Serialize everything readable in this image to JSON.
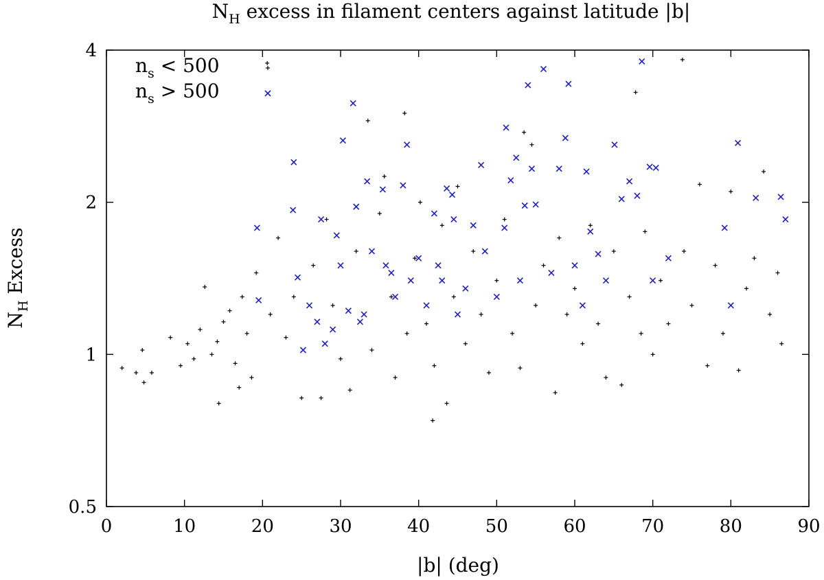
{
  "chart_data": {
    "type": "scatter",
    "title": {
      "main": "N",
      "sub": "H",
      "rest": " excess in filament centers against latitude |b|"
    },
    "xlabel": "|b| (deg)",
    "ylabel": {
      "main": "N",
      "sub": "H",
      "rest": " Excess"
    },
    "xlim": [
      0,
      90
    ],
    "ylim": [
      0.5,
      4
    ],
    "yscale": "log",
    "xticks": [
      "0",
      "10",
      "20",
      "30",
      "40",
      "50",
      "60",
      "70",
      "80",
      "90"
    ],
    "yticks": [
      "0.5",
      "1",
      "2",
      "4"
    ],
    "legend_position": "top-left",
    "series": [
      {
        "name": {
          "main": "n",
          "sub": "s",
          "rest": " < 500"
        },
        "marker": "plus",
        "color": "#000000",
        "points": [
          [
            2.0,
            0.94
          ],
          [
            3.8,
            0.92
          ],
          [
            4.6,
            1.02
          ],
          [
            4.8,
            0.88
          ],
          [
            5.8,
            0.92
          ],
          [
            8.2,
            1.08
          ],
          [
            9.5,
            0.95
          ],
          [
            10.4,
            1.05
          ],
          [
            11.2,
            0.98
          ],
          [
            12.0,
            1.12
          ],
          [
            12.6,
            1.36
          ],
          [
            13.5,
            1.0
          ],
          [
            14.2,
            1.06
          ],
          [
            14.4,
            0.8
          ],
          [
            15.0,
            1.16
          ],
          [
            15.8,
            1.22
          ],
          [
            16.5,
            0.96
          ],
          [
            17.0,
            0.86
          ],
          [
            17.4,
            1.3
          ],
          [
            18.0,
            1.1
          ],
          [
            18.6,
            0.9
          ],
          [
            19.2,
            1.45
          ],
          [
            20.6,
            3.77
          ],
          [
            21.0,
            1.2
          ],
          [
            22.0,
            1.7
          ],
          [
            23.0,
            1.08
          ],
          [
            24.0,
            1.3
          ],
          [
            25.0,
            0.82
          ],
          [
            26.5,
            1.5
          ],
          [
            27.5,
            0.82
          ],
          [
            28.2,
            1.85
          ],
          [
            29.0,
            1.25
          ],
          [
            30.0,
            0.98
          ],
          [
            31.2,
            0.85
          ],
          [
            32.0,
            1.6
          ],
          [
            33.5,
            2.9
          ],
          [
            34.0,
            1.02
          ],
          [
            35.0,
            1.9
          ],
          [
            35.6,
            2.25
          ],
          [
            36.5,
            1.3
          ],
          [
            37.0,
            0.9
          ],
          [
            38.2,
            3.0
          ],
          [
            38.5,
            1.1
          ],
          [
            39.5,
            1.55
          ],
          [
            40.2,
            2.0
          ],
          [
            41.0,
            1.15
          ],
          [
            41.8,
            0.74
          ],
          [
            42.0,
            0.95
          ],
          [
            43.0,
            1.8
          ],
          [
            43.6,
            0.8
          ],
          [
            44.5,
            1.3
          ],
          [
            45.0,
            2.15
          ],
          [
            46.0,
            1.05
          ],
          [
            47.0,
            1.6
          ],
          [
            48.0,
            1.2
          ],
          [
            49.0,
            0.92
          ],
          [
            50.0,
            1.4
          ],
          [
            51.0,
            1.85
          ],
          [
            52.0,
            1.1
          ],
          [
            53.0,
            0.94
          ],
          [
            53.5,
            2.75
          ],
          [
            54.5,
            2.6
          ],
          [
            55.0,
            1.25
          ],
          [
            56.0,
            1.5
          ],
          [
            57.5,
            0.84
          ],
          [
            58.0,
            1.7
          ],
          [
            59.0,
            1.2
          ],
          [
            60.0,
            1.35
          ],
          [
            61.0,
            1.05
          ],
          [
            62.0,
            1.8
          ],
          [
            63.0,
            1.15
          ],
          [
            64.0,
            0.9
          ],
          [
            65.0,
            1.6
          ],
          [
            66.0,
            0.87
          ],
          [
            67.0,
            1.3
          ],
          [
            67.8,
            3.3
          ],
          [
            68.5,
            1.1
          ],
          [
            69.0,
            1.75
          ],
          [
            70.0,
            1.0
          ],
          [
            71.0,
            1.4
          ],
          [
            72.0,
            1.15
          ],
          [
            73.8,
            3.83
          ],
          [
            74.0,
            1.6
          ],
          [
            75.0,
            1.25
          ],
          [
            76.0,
            2.17
          ],
          [
            77.0,
            0.95
          ],
          [
            78.0,
            1.5
          ],
          [
            79.0,
            1.1
          ],
          [
            80.0,
            2.1
          ],
          [
            81.0,
            0.93
          ],
          [
            82.0,
            1.35
          ],
          [
            83.0,
            1.55
          ],
          [
            84.2,
            2.3
          ],
          [
            85.0,
            1.2
          ],
          [
            86.0,
            1.45
          ],
          [
            86.5,
            1.05
          ]
        ]
      },
      {
        "name": {
          "main": "n",
          "sub": "s",
          "rest": " > 500"
        },
        "marker": "cross",
        "color": "#1f1fbf",
        "points": [
          [
            19.3,
            1.78
          ],
          [
            19.5,
            1.28
          ],
          [
            23.9,
            1.93
          ],
          [
            24.0,
            2.4
          ],
          [
            24.5,
            1.42
          ],
          [
            25.2,
            1.02
          ],
          [
            26.0,
            1.25
          ],
          [
            27.0,
            1.16
          ],
          [
            27.5,
            1.85
          ],
          [
            28.0,
            1.05
          ],
          [
            29.0,
            1.12
          ],
          [
            29.5,
            1.72
          ],
          [
            30.0,
            1.5
          ],
          [
            30.3,
            2.65
          ],
          [
            31.0,
            1.22
          ],
          [
            31.6,
            3.14
          ],
          [
            32.0,
            1.96
          ],
          [
            32.5,
            1.16
          ],
          [
            33.0,
            1.2
          ],
          [
            33.4,
            2.2
          ],
          [
            34.0,
            1.6
          ],
          [
            35.4,
            2.12
          ],
          [
            35.8,
            1.5
          ],
          [
            36.5,
            1.45
          ],
          [
            37.0,
            1.3
          ],
          [
            38.0,
            2.16
          ],
          [
            38.5,
            2.6
          ],
          [
            39.0,
            1.4
          ],
          [
            40.0,
            1.55
          ],
          [
            41.0,
            1.25
          ],
          [
            42.0,
            1.9
          ],
          [
            42.5,
            1.5
          ],
          [
            43.0,
            1.4
          ],
          [
            43.6,
            2.13
          ],
          [
            44.3,
            2.07
          ],
          [
            44.5,
            1.85
          ],
          [
            45.0,
            1.2
          ],
          [
            46.0,
            1.35
          ],
          [
            47.0,
            1.8
          ],
          [
            48.0,
            2.37
          ],
          [
            48.5,
            1.6
          ],
          [
            50.0,
            1.3
          ],
          [
            51.0,
            1.78
          ],
          [
            51.2,
            2.81
          ],
          [
            51.8,
            2.21
          ],
          [
            52.5,
            2.45
          ],
          [
            53.0,
            1.4
          ],
          [
            53.6,
            1.97
          ],
          [
            54.0,
            3.41
          ],
          [
            54.5,
            2.33
          ],
          [
            55.0,
            1.98
          ],
          [
            56.0,
            3.67
          ],
          [
            57.0,
            1.45
          ],
          [
            58.0,
            2.33
          ],
          [
            58.8,
            2.68
          ],
          [
            59.2,
            3.43
          ],
          [
            60.0,
            1.5
          ],
          [
            61.0,
            1.25
          ],
          [
            61.5,
            2.3
          ],
          [
            62.0,
            1.75
          ],
          [
            63.0,
            1.58
          ],
          [
            64.0,
            1.4
          ],
          [
            65.1,
            2.6
          ],
          [
            66.0,
            2.03
          ],
          [
            67.0,
            2.2
          ],
          [
            68.0,
            2.06
          ],
          [
            68.6,
            3.8
          ],
          [
            69.6,
            2.35
          ],
          [
            70.0,
            1.4
          ],
          [
            70.4,
            2.34
          ],
          [
            72.0,
            1.55
          ],
          [
            79.2,
            1.78
          ],
          [
            80.0,
            1.25
          ],
          [
            80.9,
            2.62
          ],
          [
            83.2,
            2.04
          ],
          [
            86.4,
            2.05
          ],
          [
            87.0,
            1.85
          ]
        ]
      }
    ]
  }
}
